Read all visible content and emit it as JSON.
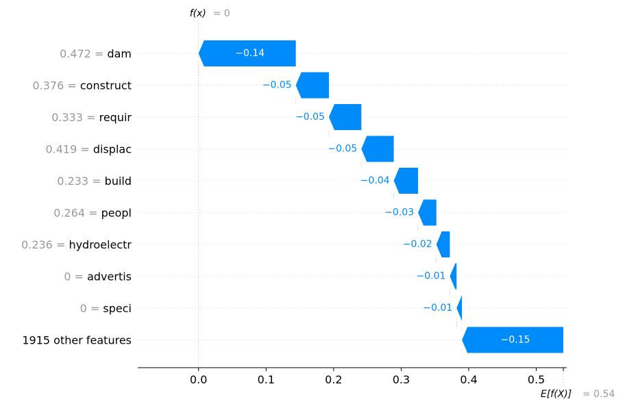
{
  "chart_data": {
    "type": "waterfall",
    "title": "",
    "fx_label": "f(x)",
    "fx_value_text": "= 0",
    "fx_value": 0,
    "base_label": "E[f(X)]",
    "base_value_text": "= 0.54",
    "base_value": 0.54,
    "xlim": [
      -0.09,
      0.545
    ],
    "x_ticks": [
      {
        "value": 0.0,
        "label": "0.0"
      },
      {
        "value": 0.1,
        "label": "0.1"
      },
      {
        "value": 0.2,
        "label": "0.2"
      },
      {
        "value": 0.3,
        "label": "0.3"
      },
      {
        "value": 0.4,
        "label": "0.4"
      },
      {
        "value": 0.5,
        "label": "0.5"
      }
    ],
    "features": [
      {
        "value_text": "0.472 =",
        "name": "dam",
        "start": 0.144,
        "end": 0.0,
        "label": "−0.14",
        "label_inside": true
      },
      {
        "value_text": "0.376 =",
        "name": "construct",
        "start": 0.193,
        "end": 0.144,
        "label": "−0.05",
        "label_inside": false
      },
      {
        "value_text": "0.333 =",
        "name": "requir",
        "start": 0.241,
        "end": 0.193,
        "label": "−0.05",
        "label_inside": false
      },
      {
        "value_text": "0.419 =",
        "name": "displac",
        "start": 0.289,
        "end": 0.241,
        "label": "−0.05",
        "label_inside": false
      },
      {
        "value_text": "0.233 =",
        "name": "build",
        "start": 0.325,
        "end": 0.289,
        "label": "−0.04",
        "label_inside": false
      },
      {
        "value_text": "0.264 =",
        "name": "peopl",
        "start": 0.352,
        "end": 0.325,
        "label": "−0.03",
        "label_inside": false
      },
      {
        "value_text": "0.236 =",
        "name": "hydroelectr",
        "start": 0.372,
        "end": 0.352,
        "label": "−0.02",
        "label_inside": false
      },
      {
        "value_text": "0 =",
        "name": "advertis",
        "start": 0.382,
        "end": 0.372,
        "label": "−0.01",
        "label_inside": false
      },
      {
        "value_text": "0 =",
        "name": "speci",
        "start": 0.39,
        "end": 0.382,
        "label": "−0.01",
        "label_inside": false
      },
      {
        "value_text": "",
        "name": "1915 other features",
        "start": 0.54,
        "end": 0.39,
        "label": "−0.15",
        "label_inside": true
      }
    ],
    "colors": {
      "negative": "#008bfb",
      "negative_text": "#008bfb",
      "inside_text": "#ffffff",
      "muted_text": "#999999",
      "axis": "#000000",
      "grid": "#cccccc",
      "connector": "#bbbbbb"
    }
  }
}
